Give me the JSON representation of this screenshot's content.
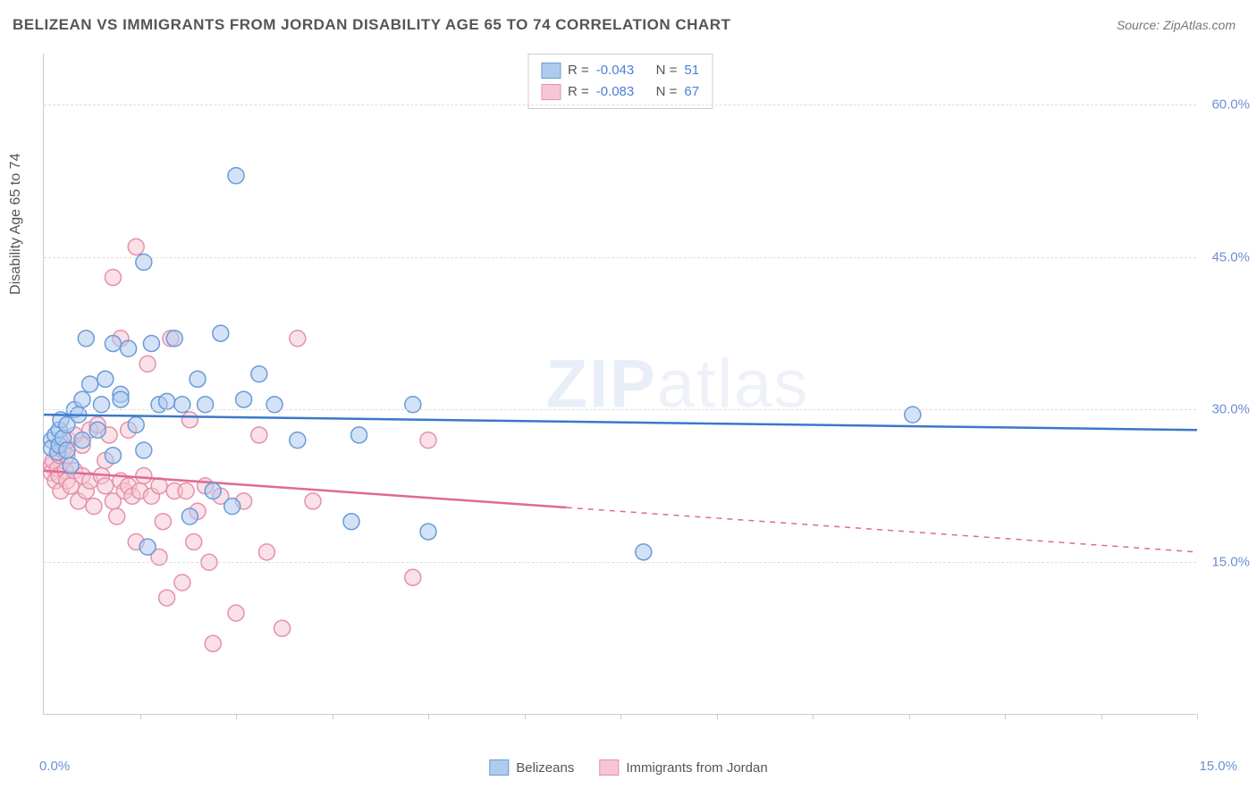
{
  "title": "BELIZEAN VS IMMIGRANTS FROM JORDAN DISABILITY AGE 65 TO 74 CORRELATION CHART",
  "source_label": "Source: ZipAtlas.com",
  "y_axis_label": "Disability Age 65 to 74",
  "x_origin_label": "0.0%",
  "x_end_label": "15.0%",
  "watermark_a": "ZIP",
  "watermark_b": "atlas",
  "chart": {
    "type": "scatter",
    "xlim": [
      0,
      15
    ],
    "ylim": [
      0,
      65
    ],
    "y_ticks": [
      15,
      30,
      45,
      60
    ],
    "y_tick_labels": [
      "15.0%",
      "30.0%",
      "45.0%",
      "60.0%"
    ],
    "x_tick_positions": [
      1.25,
      2.5,
      3.75,
      5.0,
      6.25,
      7.5,
      8.75,
      10.0,
      11.25,
      12.5,
      13.75,
      15.0
    ],
    "background_color": "#ffffff",
    "grid_color": "#dddddd",
    "tick_color": "#6a8fd4",
    "axis_color": "#cccccc",
    "marker_radius": 9,
    "marker_opacity": 0.55,
    "series": {
      "belizeans": {
        "label": "Belizeans",
        "fill": "#aecbee",
        "stroke": "#6a9bd8",
        "line_color": "#3b78c9",
        "r_value": "-0.043",
        "n_value": "51",
        "trend": {
          "x1": 0,
          "y1": 29.5,
          "x2": 15,
          "y2": 28.0,
          "dashed_from_x": 15
        },
        "points": [
          [
            0.1,
            27.0
          ],
          [
            0.1,
            26.2
          ],
          [
            0.15,
            27.5
          ],
          [
            0.18,
            25.8
          ],
          [
            0.2,
            28.0
          ],
          [
            0.2,
            26.5
          ],
          [
            0.22,
            29.0
          ],
          [
            0.25,
            27.2
          ],
          [
            0.3,
            28.5
          ],
          [
            0.3,
            26.0
          ],
          [
            0.35,
            24.5
          ],
          [
            0.4,
            30.0
          ],
          [
            0.45,
            29.5
          ],
          [
            0.5,
            31.0
          ],
          [
            0.5,
            27.0
          ],
          [
            0.55,
            37.0
          ],
          [
            0.6,
            32.5
          ],
          [
            0.7,
            28.0
          ],
          [
            0.75,
            30.5
          ],
          [
            0.8,
            33.0
          ],
          [
            0.9,
            36.5
          ],
          [
            0.9,
            25.5
          ],
          [
            1.0,
            31.5
          ],
          [
            1.0,
            31.0
          ],
          [
            1.1,
            36.0
          ],
          [
            1.2,
            28.5
          ],
          [
            1.3,
            26.0
          ],
          [
            1.3,
            44.5
          ],
          [
            1.35,
            16.5
          ],
          [
            1.4,
            36.5
          ],
          [
            1.5,
            30.5
          ],
          [
            1.6,
            30.8
          ],
          [
            1.7,
            37.0
          ],
          [
            1.8,
            30.5
          ],
          [
            1.9,
            19.5
          ],
          [
            2.0,
            33.0
          ],
          [
            2.1,
            30.5
          ],
          [
            2.2,
            22.0
          ],
          [
            2.3,
            37.5
          ],
          [
            2.45,
            20.5
          ],
          [
            2.5,
            53.0
          ],
          [
            2.6,
            31.0
          ],
          [
            2.8,
            33.5
          ],
          [
            3.0,
            30.5
          ],
          [
            3.3,
            27.0
          ],
          [
            4.0,
            19.0
          ],
          [
            4.1,
            27.5
          ],
          [
            4.8,
            30.5
          ],
          [
            5.0,
            18.0
          ],
          [
            7.8,
            16.0
          ],
          [
            11.3,
            29.5
          ]
        ]
      },
      "jordan": {
        "label": "Immigrants from Jordan",
        "fill": "#f6c6d4",
        "stroke": "#e591ab",
        "line_color": "#e06a8f",
        "r_value": "-0.083",
        "n_value": "67",
        "trend": {
          "x1": 0,
          "y1": 24.0,
          "x2": 15,
          "y2": 16.0,
          "dashed_from_x": 6.8
        },
        "points": [
          [
            0.1,
            24.5
          ],
          [
            0.1,
            23.8
          ],
          [
            0.12,
            25.0
          ],
          [
            0.15,
            23.0
          ],
          [
            0.18,
            24.2
          ],
          [
            0.2,
            25.5
          ],
          [
            0.2,
            23.5
          ],
          [
            0.22,
            22.0
          ],
          [
            0.25,
            26.0
          ],
          [
            0.28,
            24.0
          ],
          [
            0.3,
            23.0
          ],
          [
            0.3,
            25.5
          ],
          [
            0.32,
            27.0
          ],
          [
            0.35,
            22.5
          ],
          [
            0.4,
            24.0
          ],
          [
            0.4,
            27.5
          ],
          [
            0.45,
            21.0
          ],
          [
            0.5,
            23.5
          ],
          [
            0.5,
            26.5
          ],
          [
            0.55,
            22.0
          ],
          [
            0.6,
            28.0
          ],
          [
            0.6,
            23.0
          ],
          [
            0.65,
            20.5
          ],
          [
            0.7,
            28.5
          ],
          [
            0.75,
            23.5
          ],
          [
            0.8,
            22.5
          ],
          [
            0.8,
            25.0
          ],
          [
            0.85,
            27.5
          ],
          [
            0.9,
            21.0
          ],
          [
            0.9,
            43.0
          ],
          [
            0.95,
            19.5
          ],
          [
            1.0,
            37.0
          ],
          [
            1.0,
            23.0
          ],
          [
            1.05,
            22.0
          ],
          [
            1.1,
            28.0
          ],
          [
            1.1,
            22.5
          ],
          [
            1.15,
            21.5
          ],
          [
            1.2,
            46.0
          ],
          [
            1.2,
            17.0
          ],
          [
            1.25,
            22.0
          ],
          [
            1.3,
            23.5
          ],
          [
            1.35,
            34.5
          ],
          [
            1.4,
            21.5
          ],
          [
            1.5,
            22.5
          ],
          [
            1.5,
            15.5
          ],
          [
            1.55,
            19.0
          ],
          [
            1.6,
            11.5
          ],
          [
            1.65,
            37.0
          ],
          [
            1.7,
            22.0
          ],
          [
            1.8,
            13.0
          ],
          [
            1.85,
            22.0
          ],
          [
            1.9,
            29.0
          ],
          [
            1.95,
            17.0
          ],
          [
            2.0,
            20.0
          ],
          [
            2.1,
            22.5
          ],
          [
            2.15,
            15.0
          ],
          [
            2.2,
            7.0
          ],
          [
            2.3,
            21.5
          ],
          [
            2.5,
            10.0
          ],
          [
            2.6,
            21.0
          ],
          [
            2.8,
            27.5
          ],
          [
            2.9,
            16.0
          ],
          [
            3.1,
            8.5
          ],
          [
            3.3,
            37.0
          ],
          [
            3.5,
            21.0
          ],
          [
            4.8,
            13.5
          ],
          [
            5.0,
            27.0
          ]
        ]
      }
    }
  },
  "legend_top": {
    "r_key": "R =",
    "n_key": "N ="
  }
}
